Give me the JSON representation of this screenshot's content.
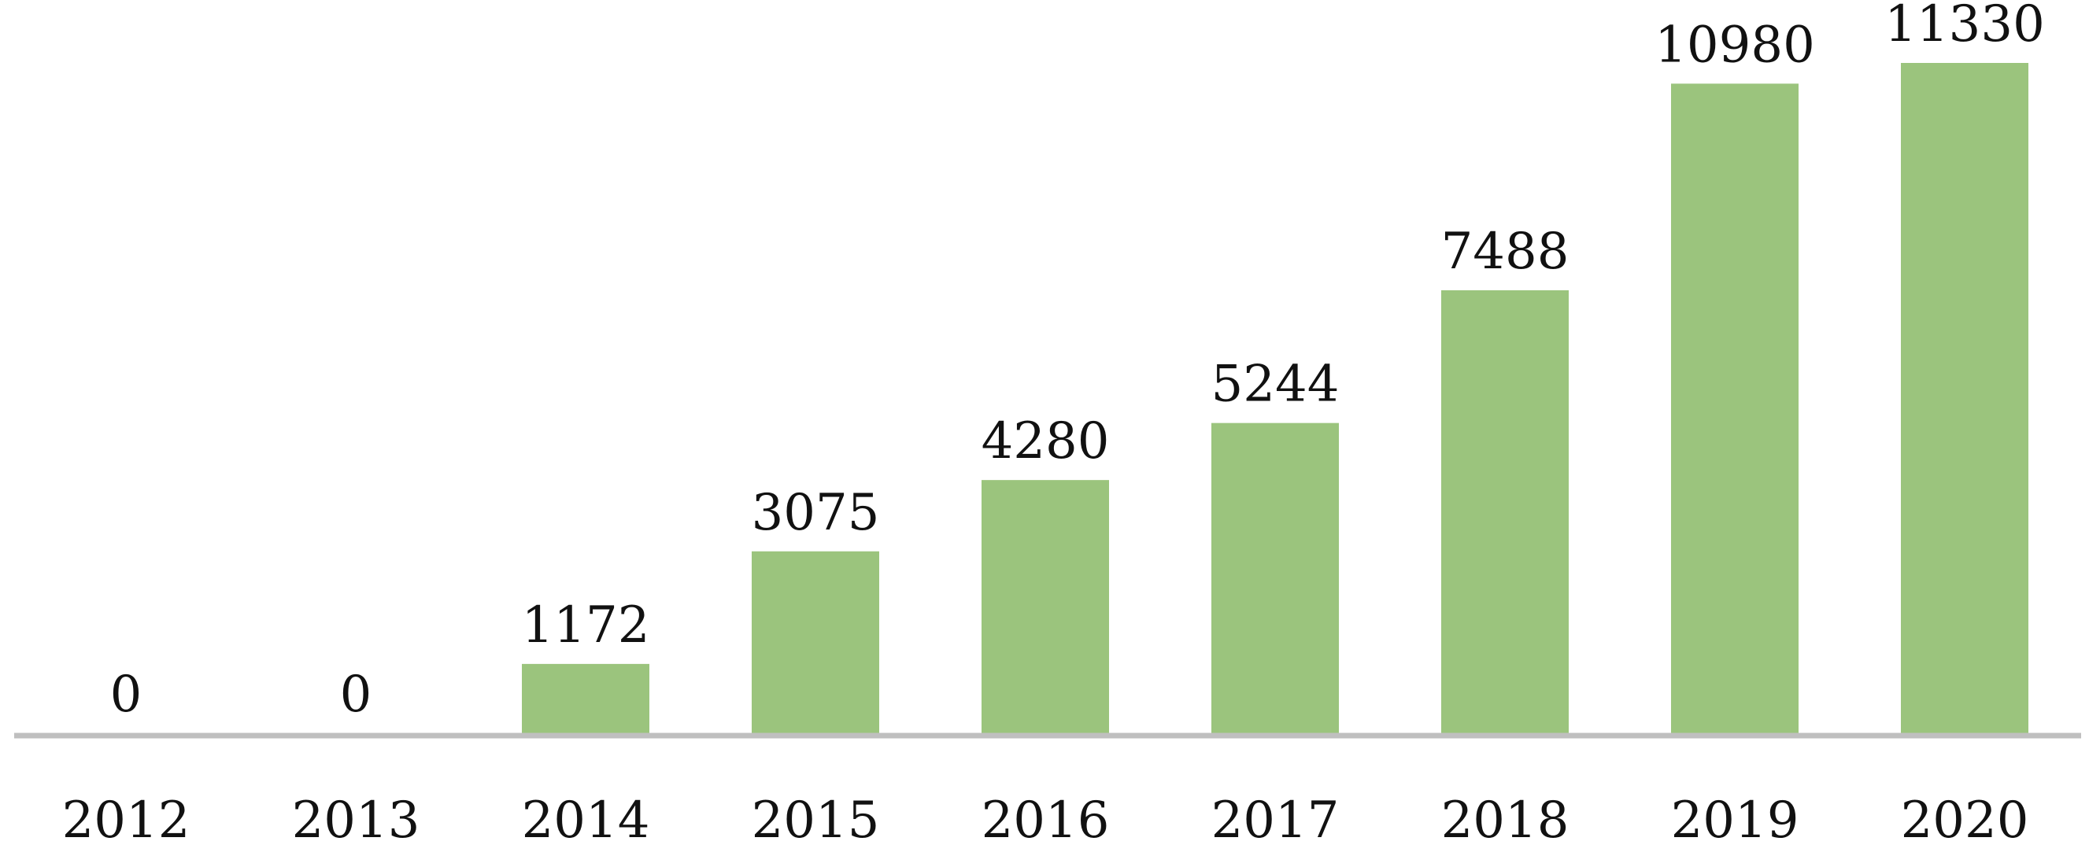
{
  "chart_data": {
    "type": "bar",
    "categories": [
      "2012",
      "2013",
      "2014",
      "2015",
      "2016",
      "2017",
      "2018",
      "2019",
      "2020"
    ],
    "values": [
      0,
      0,
      1172,
      3075,
      4280,
      5244,
      7488,
      10980,
      11330
    ],
    "data_labels": [
      "0",
      "0",
      "1172",
      "3075",
      "4280",
      "5244",
      "7488",
      "10980",
      "11330"
    ],
    "title": "",
    "xlabel": "",
    "ylabel": "",
    "ylim": [
      0,
      12000
    ],
    "grid": false,
    "legend": "none",
    "bar_color": "#9bc47d",
    "axis_color": "#bfbfbf"
  }
}
